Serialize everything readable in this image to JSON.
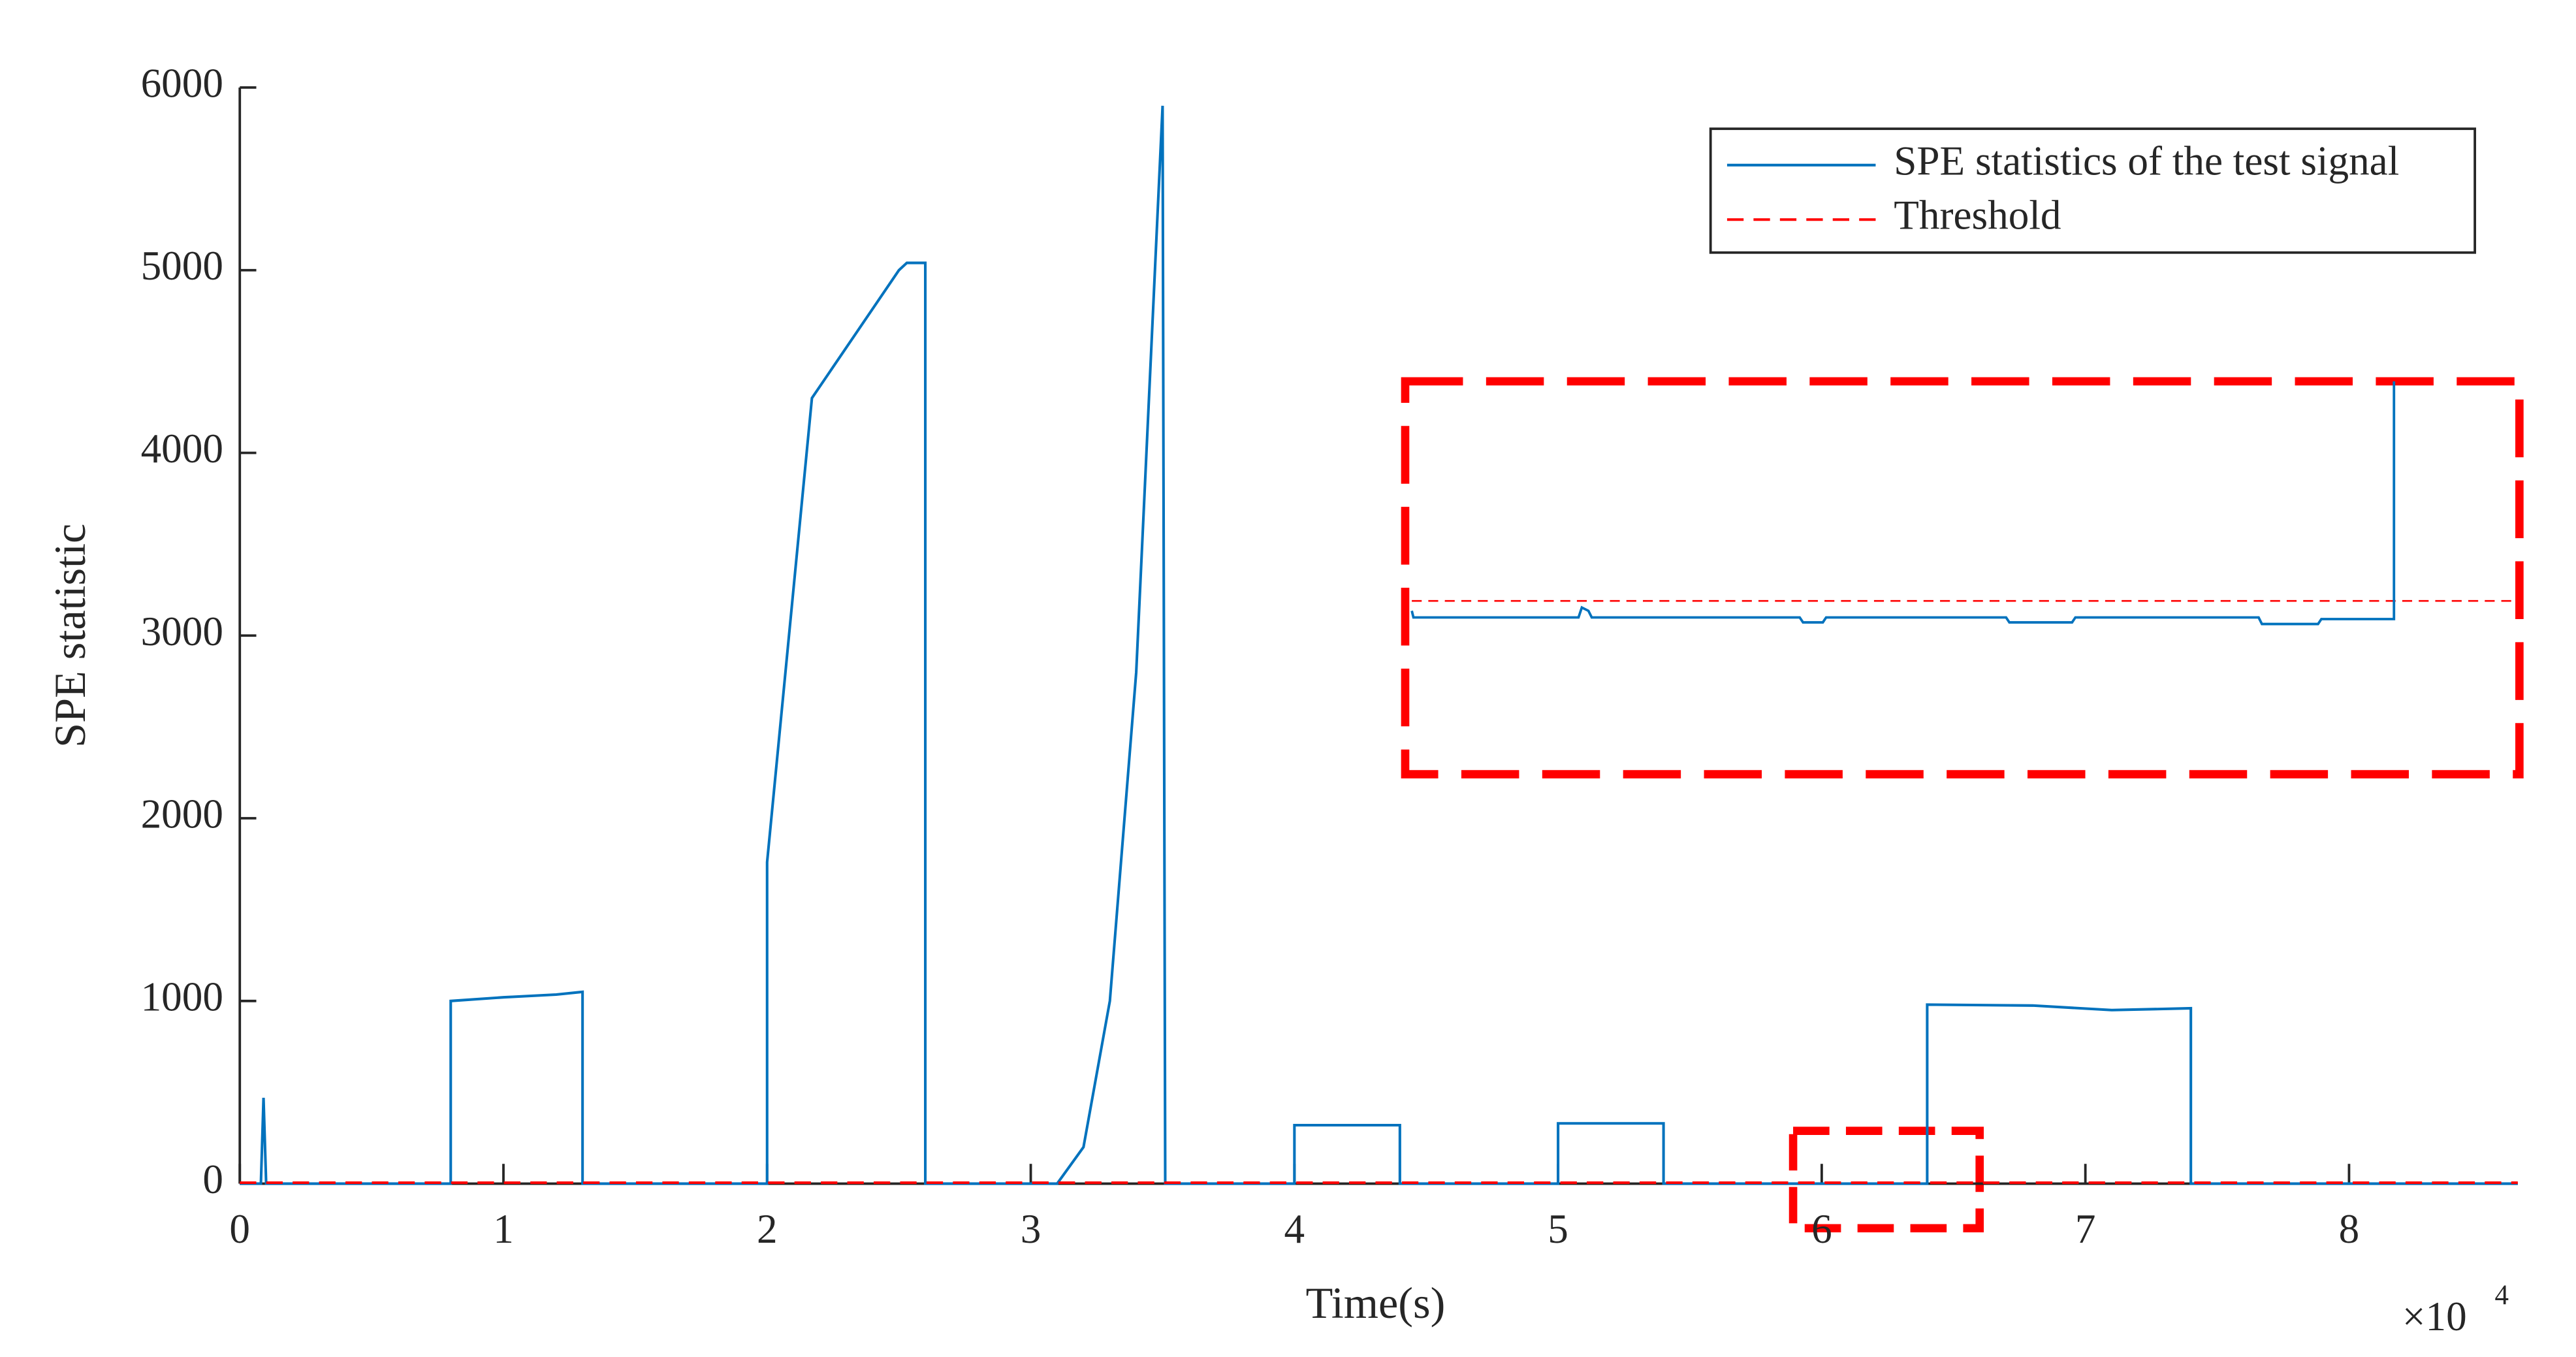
{
  "chart_data": {
    "type": "line",
    "xlabel": "Time(s)",
    "ylabel": "SPE statistic",
    "x_multiplier": "×10",
    "x_multiplier_exponent": "4",
    "xlim": [
      0,
      86400
    ],
    "ylim": [
      0,
      6000
    ],
    "xticks": [
      0,
      {
        "value": 10000,
        "label": "1"
      },
      {
        "value": 20000,
        "label": "2"
      },
      {
        "value": 30000,
        "label": "3"
      },
      {
        "value": 40000,
        "label": "4"
      },
      {
        "value": 50000,
        "label": "5"
      },
      {
        "value": 60000,
        "label": "6"
      },
      {
        "value": 70000,
        "label": "7"
      },
      {
        "value": 80000,
        "label": "8"
      }
    ],
    "yticks": [
      0,
      1000,
      2000,
      3000,
      4000,
      5000,
      6000
    ],
    "legend": "upper right",
    "series": [
      {
        "name": "SPE statistics of the test signal",
        "color": "#0072bd",
        "dash": "solid",
        "x": [
          0,
          800,
          900,
          1000,
          8000,
          8000,
          10000,
          12000,
          13000,
          13000,
          20000,
          20000,
          21700,
          25000,
          25300,
          26000,
          26000,
          31000,
          32000,
          33000,
          34000,
          35000,
          35100,
          40000,
          40000,
          44000,
          44000,
          50000,
          50000,
          54000,
          54000,
          64000,
          64000,
          68000,
          71000,
          74000,
          74000,
          86400
        ],
        "values": [
          0,
          0,
          470,
          0,
          0,
          1000,
          1020,
          1035,
          1050,
          0,
          0,
          1760,
          4300,
          5000,
          5040,
          5040,
          0,
          0,
          200,
          1000,
          2800,
          5900,
          0,
          0,
          320,
          320,
          0,
          0,
          330,
          330,
          0,
          0,
          980,
          975,
          950,
          960,
          0,
          0
        ]
      },
      {
        "name": "Threshold",
        "color": "#ff0000",
        "dash": "dashed",
        "x": [
          0,
          86400
        ],
        "values": [
          5,
          5
        ]
      }
    ]
  }
}
